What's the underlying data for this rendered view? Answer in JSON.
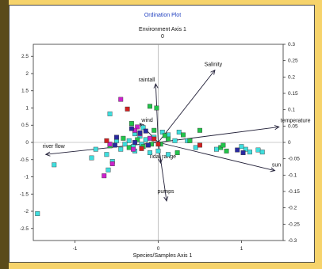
{
  "chart_data": {
    "type": "scatter",
    "title": "Ordination Plot",
    "top_axis_label": "Environment Axis 1",
    "top_axis_tick": "0",
    "xlabel": "Species/Samples Axis 1",
    "xlim": [
      -1.5,
      1.5
    ],
    "ylim": [
      -2.85,
      2.85
    ],
    "x_ticks": [
      -1,
      0,
      1
    ],
    "y_ticks": [
      2.5,
      2,
      1.5,
      1,
      0.5,
      0,
      -0.5,
      -1,
      -1.5,
      -2,
      -2.5
    ],
    "y2_ticks": [
      0.3,
      0.25,
      0.2,
      0.15,
      0.1,
      0.05,
      0,
      -0.05,
      -0.1,
      -0.15,
      -0.2,
      -0.25,
      -0.3
    ],
    "y_tick_labels": [
      "2.5",
      "2",
      "1.5",
      "1",
      "0.5",
      "0",
      "-0.5",
      "-1",
      "-1.5",
      "-2",
      "-2.5"
    ],
    "y2_tick_labels": [
      "0.3",
      "0.25",
      "0.2",
      "0.15",
      "0.1",
      "0.05",
      "0",
      "-0.05",
      "-0.1",
      "-0.15",
      "-0.2",
      "-0.25",
      "-0.3"
    ],
    "x_tick_labels": [
      "-1",
      "0",
      "1"
    ],
    "vectors": [
      {
        "name": "Salinity",
        "x": 0.68,
        "y": 2.1
      },
      {
        "name": "raintall",
        "x": -0.03,
        "y": 1.7
      },
      {
        "name": "wind",
        "x": -0.22,
        "y": 0.55
      },
      {
        "name": "temperature",
        "x": 1.45,
        "y": 0.45
      },
      {
        "name": "river flow",
        "x": -1.35,
        "y": -0.35
      },
      {
        "name": "sun",
        "x": 1.4,
        "y": -0.82
      },
      {
        "name": "Tidal range",
        "x": 0.03,
        "y": -0.6
      },
      {
        "name": "pumps",
        "x": 0.1,
        "y": -1.7
      }
    ],
    "series": [
      {
        "color": "#3fdede",
        "points": [
          [
            -0.28,
            0.25
          ],
          [
            -0.22,
            0.18
          ],
          [
            -0.35,
            0.05
          ],
          [
            -0.4,
            -0.05
          ],
          [
            -0.3,
            -0.12
          ],
          [
            -0.15,
            0.08
          ],
          [
            -0.05,
            0.15
          ],
          [
            -0.5,
            0.05
          ],
          [
            -0.45,
            -0.2
          ],
          [
            -0.55,
            -0.55
          ],
          [
            -0.6,
            -0.8
          ],
          [
            -0.62,
            -0.35
          ],
          [
            -0.75,
            -0.2
          ],
          [
            -0.8,
            -0.45
          ],
          [
            -1.25,
            -0.65
          ],
          [
            -1.45,
            -2.07
          ],
          [
            -0.58,
            0.83
          ],
          [
            -0.18,
            0.43
          ],
          [
            0.05,
            0.3
          ],
          [
            0.12,
            0.22
          ],
          [
            0.2,
            0.05
          ],
          [
            0.25,
            0.3
          ],
          [
            0.35,
            0.05
          ],
          [
            0.45,
            -0.15
          ],
          [
            0.7,
            -0.2
          ],
          [
            1.05,
            -0.2
          ],
          [
            1.1,
            -0.28
          ],
          [
            1.2,
            -0.22
          ],
          [
            1.25,
            -0.28
          ],
          [
            1.0,
            -0.12
          ],
          [
            0.0,
            -0.25
          ],
          [
            -0.1,
            -0.3
          ],
          [
            0.12,
            -0.35
          ],
          [
            -0.28,
            -0.25
          ],
          [
            -0.2,
            -0.05
          ]
        ]
      },
      {
        "color": "#22c44a",
        "points": [
          [
            -0.05,
            0.35
          ],
          [
            -0.25,
            0.08
          ],
          [
            0.03,
            -0.05
          ],
          [
            0.12,
            0.1
          ],
          [
            0.3,
            0.22
          ],
          [
            0.5,
            0.35
          ],
          [
            0.38,
            0.05
          ],
          [
            0.75,
            -0.15
          ],
          [
            0.82,
            -0.25
          ],
          [
            0.78,
            -0.08
          ],
          [
            0.23,
            -0.3
          ],
          [
            -0.35,
            -0.15
          ],
          [
            -0.42,
            0.12
          ],
          [
            -0.58,
            -0.1
          ],
          [
            -0.18,
            -0.12
          ],
          [
            -0.02,
            1.0
          ],
          [
            -0.1,
            1.05
          ],
          [
            -0.32,
            0.55
          ],
          [
            -0.08,
            -0.05
          ],
          [
            0.08,
            0.2
          ]
        ]
      },
      {
        "color": "#cc22cc",
        "points": [
          [
            -0.45,
            1.25
          ],
          [
            -0.58,
            -0.05
          ],
          [
            -0.55,
            -0.62
          ],
          [
            -0.65,
            -0.97
          ],
          [
            -0.25,
            0.45
          ],
          [
            -0.22,
            0.25
          ],
          [
            -0.28,
            0.35
          ],
          [
            -0.3,
            -0.2
          ],
          [
            -0.1,
            0.12
          ]
        ]
      },
      {
        "color": "#2a2aa0",
        "points": [
          [
            -0.15,
            0.33
          ],
          [
            -0.22,
            0.28
          ],
          [
            -0.32,
            0.4
          ],
          [
            -0.5,
            0.15
          ],
          [
            -0.52,
            -0.08
          ],
          [
            0.95,
            -0.22
          ],
          [
            1.02,
            -0.3
          ],
          [
            -0.28,
            0.0
          ],
          [
            -0.12,
            -0.08
          ]
        ]
      },
      {
        "color": "#d02020",
        "points": [
          [
            -0.37,
            0.97
          ],
          [
            0.0,
            -0.05
          ],
          [
            0.5,
            -0.08
          ],
          [
            -0.62,
            0.05
          ],
          [
            -0.2,
            -0.18
          ],
          [
            -0.05,
            0.1
          ]
        ]
      }
    ]
  }
}
